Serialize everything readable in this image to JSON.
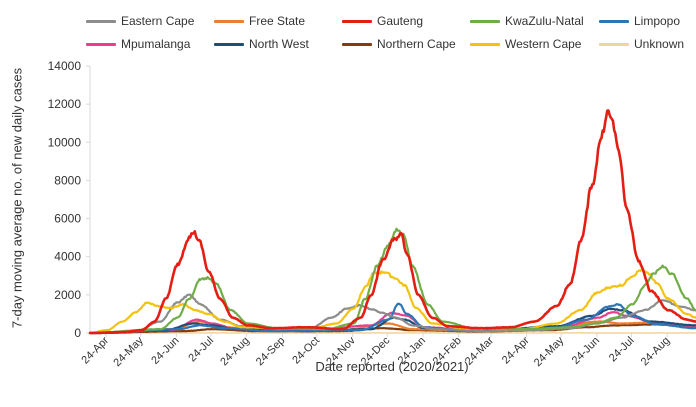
{
  "chart_data": {
    "type": "line",
    "title": "",
    "xlabel": "Date reported (2020/2021)",
    "ylabel": "7-day moving average no. of new daily cases",
    "ylim": [
      0,
      14000
    ],
    "yticks": [
      0,
      2000,
      4000,
      6000,
      8000,
      10000,
      12000,
      14000
    ],
    "ytick_labels": [
      "0",
      "2000",
      "4000",
      "6000",
      "8000",
      "10000",
      "12000",
      "14000"
    ],
    "xlim": [
      "2020-04-10",
      "2021-09-18"
    ],
    "xticks": [
      "2020-04-24",
      "2020-05-24",
      "2020-06-24",
      "2020-07-24",
      "2020-08-24",
      "2020-09-24",
      "2020-10-24",
      "2020-11-24",
      "2020-12-24",
      "2021-01-24",
      "2021-02-24",
      "2021-03-24",
      "2021-04-24",
      "2021-05-24",
      "2021-06-24",
      "2021-07-24",
      "2021-08-24"
    ],
    "xtick_labels": [
      "24-Apr",
      "24-May",
      "24-Jun",
      "24-Jul",
      "24-Aug",
      "24-Sep",
      "24-Oct",
      "24-Nov",
      "24-Dec",
      "24-Jan",
      "24-Feb",
      "24-Mar",
      "24-Apr",
      "24-May",
      "24-Jun",
      "24-Jul",
      "24-Aug"
    ],
    "grid": false,
    "legend_position": "top",
    "series": [
      {
        "name": "Eastern Cape",
        "color": "#8c8c8c",
        "points": [
          [
            "2020-04-10",
            0
          ],
          [
            "2020-05-20",
            100
          ],
          [
            "2020-06-10",
            600
          ],
          [
            "2020-06-25",
            1600
          ],
          [
            "2020-07-05",
            2000
          ],
          [
            "2020-07-15",
            1500
          ],
          [
            "2020-08-01",
            700
          ],
          [
            "2020-08-20",
            350
          ],
          [
            "2020-09-20",
            200
          ],
          [
            "2020-10-20",
            300
          ],
          [
            "2020-11-05",
            800
          ],
          [
            "2020-11-20",
            1300
          ],
          [
            "2020-12-01",
            1450
          ],
          [
            "2020-12-10",
            1250
          ],
          [
            "2020-12-20",
            1050
          ],
          [
            "2021-01-01",
            800
          ],
          [
            "2021-01-15",
            400
          ],
          [
            "2021-02-05",
            200
          ],
          [
            "2021-03-20",
            100
          ],
          [
            "2021-05-01",
            150
          ],
          [
            "2021-06-01",
            250
          ],
          [
            "2021-06-24",
            500
          ],
          [
            "2021-07-15",
            800
          ],
          [
            "2021-08-05",
            1200
          ],
          [
            "2021-08-20",
            1700
          ],
          [
            "2021-09-05",
            1400
          ],
          [
            "2021-09-18",
            1200
          ]
        ]
      },
      {
        "name": "Free State",
        "color": "#ed7d31",
        "points": [
          [
            "2020-04-10",
            0
          ],
          [
            "2020-06-20",
            200
          ],
          [
            "2020-07-15",
            600
          ],
          [
            "2020-08-05",
            300
          ],
          [
            "2020-09-15",
            100
          ],
          [
            "2020-11-15",
            150
          ],
          [
            "2020-12-25",
            500
          ],
          [
            "2021-01-15",
            200
          ],
          [
            "2021-03-15",
            100
          ],
          [
            "2021-05-20",
            300
          ],
          [
            "2021-06-25",
            600
          ],
          [
            "2021-07-15",
            500
          ],
          [
            "2021-08-15",
            550
          ],
          [
            "2021-09-18",
            350
          ]
        ]
      },
      {
        "name": "Gauteng",
        "color": "#e41e13",
        "points": [
          [
            "2020-04-10",
            0
          ],
          [
            "2020-05-10",
            50
          ],
          [
            "2020-05-25",
            150
          ],
          [
            "2020-06-05",
            600
          ],
          [
            "2020-06-15",
            1800
          ],
          [
            "2020-06-25",
            3600
          ],
          [
            "2020-07-05",
            5000
          ],
          [
            "2020-07-09",
            5300
          ],
          [
            "2020-07-14",
            4800
          ],
          [
            "2020-07-22",
            3200
          ],
          [
            "2020-08-01",
            1800
          ],
          [
            "2020-08-12",
            800
          ],
          [
            "2020-08-25",
            400
          ],
          [
            "2020-09-15",
            250
          ],
          [
            "2020-10-15",
            300
          ],
          [
            "2020-11-15",
            200
          ],
          [
            "2020-12-01",
            800
          ],
          [
            "2020-12-10",
            2000
          ],
          [
            "2020-12-20",
            3800
          ],
          [
            "2020-12-30",
            4900
          ],
          [
            "2021-01-05",
            5200
          ],
          [
            "2021-01-10",
            4200
          ],
          [
            "2021-01-20",
            2000
          ],
          [
            "2021-02-01",
            800
          ],
          [
            "2021-02-15",
            350
          ],
          [
            "2021-03-15",
            250
          ],
          [
            "2021-04-10",
            300
          ],
          [
            "2021-05-01",
            600
          ],
          [
            "2021-05-20",
            1400
          ],
          [
            "2021-06-01",
            2600
          ],
          [
            "2021-06-10",
            4800
          ],
          [
            "2021-06-20",
            7800
          ],
          [
            "2021-06-28",
            10300
          ],
          [
            "2021-07-03",
            11600
          ],
          [
            "2021-07-07",
            11200
          ],
          [
            "2021-07-12",
            9800
          ],
          [
            "2021-07-20",
            6500
          ],
          [
            "2021-07-30",
            3800
          ],
          [
            "2021-08-10",
            2200
          ],
          [
            "2021-08-25",
            1200
          ],
          [
            "2021-09-10",
            700
          ],
          [
            "2021-09-18",
            600
          ]
        ]
      },
      {
        "name": "KwaZulu-Natal",
        "color": "#70ad47",
        "points": [
          [
            "2020-04-10",
            0
          ],
          [
            "2020-06-10",
            200
          ],
          [
            "2020-06-25",
            800
          ],
          [
            "2020-07-05",
            1800
          ],
          [
            "2020-07-15",
            2800
          ],
          [
            "2020-07-22",
            2900
          ],
          [
            "2020-07-28",
            2600
          ],
          [
            "2020-08-10",
            1200
          ],
          [
            "2020-08-25",
            500
          ],
          [
            "2020-09-20",
            250
          ],
          [
            "2020-11-01",
            200
          ],
          [
            "2020-11-25",
            500
          ],
          [
            "2020-12-05",
            1800
          ],
          [
            "2020-12-15",
            3500
          ],
          [
            "2020-12-25",
            4600
          ],
          [
            "2021-01-01",
            5400
          ],
          [
            "2021-01-07",
            5100
          ],
          [
            "2021-01-15",
            3500
          ],
          [
            "2021-01-28",
            1500
          ],
          [
            "2021-02-10",
            600
          ],
          [
            "2021-03-10",
            250
          ],
          [
            "2021-04-20",
            200
          ],
          [
            "2021-06-01",
            300
          ],
          [
            "2021-06-24",
            500
          ],
          [
            "2021-07-10",
            800
          ],
          [
            "2021-07-25",
            1500
          ],
          [
            "2021-08-05",
            2500
          ],
          [
            "2021-08-12",
            3100
          ],
          [
            "2021-08-20",
            3500
          ],
          [
            "2021-08-28",
            3100
          ],
          [
            "2021-09-10",
            1800
          ],
          [
            "2021-09-18",
            1200
          ]
        ]
      },
      {
        "name": "Limpopo",
        "color": "#2e75b6",
        "points": [
          [
            "2020-04-10",
            0
          ],
          [
            "2020-06-25",
            200
          ],
          [
            "2020-07-15",
            400
          ],
          [
            "2020-08-05",
            250
          ],
          [
            "2020-09-15",
            100
          ],
          [
            "2020-12-01",
            150
          ],
          [
            "2020-12-25",
            700
          ],
          [
            "2021-01-03",
            1550
          ],
          [
            "2021-01-10",
            1000
          ],
          [
            "2021-01-25",
            300
          ],
          [
            "2021-03-01",
            100
          ],
          [
            "2021-05-15",
            200
          ],
          [
            "2021-06-15",
            700
          ],
          [
            "2021-07-05",
            1400
          ],
          [
            "2021-07-12",
            1500
          ],
          [
            "2021-07-25",
            900
          ],
          [
            "2021-08-15",
            450
          ],
          [
            "2021-09-18",
            250
          ]
        ]
      },
      {
        "name": "Mpumalanga",
        "color": "#e83e8c",
        "points": [
          [
            "2020-04-10",
            0
          ],
          [
            "2020-06-20",
            150
          ],
          [
            "2020-07-12",
            700
          ],
          [
            "2020-07-25",
            500
          ],
          [
            "2020-08-15",
            200
          ],
          [
            "2020-10-15",
            100
          ],
          [
            "2020-12-10",
            400
          ],
          [
            "2020-12-28",
            1050
          ],
          [
            "2021-01-10",
            900
          ],
          [
            "2021-01-25",
            300
          ],
          [
            "2021-03-15",
            100
          ],
          [
            "2021-05-25",
            300
          ],
          [
            "2021-06-25",
            800
          ],
          [
            "2021-07-08",
            1100
          ],
          [
            "2021-07-20",
            900
          ],
          [
            "2021-08-15",
            500
          ],
          [
            "2021-09-18",
            350
          ]
        ]
      },
      {
        "name": "North West",
        "color": "#1f4e79",
        "points": [
          [
            "2020-04-10",
            0
          ],
          [
            "2020-06-15",
            150
          ],
          [
            "2020-07-08",
            500
          ],
          [
            "2020-07-25",
            400
          ],
          [
            "2020-08-15",
            200
          ],
          [
            "2020-10-15",
            100
          ],
          [
            "2020-12-10",
            200
          ],
          [
            "2020-12-30",
            800
          ],
          [
            "2021-01-08",
            700
          ],
          [
            "2021-01-25",
            250
          ],
          [
            "2021-03-15",
            100
          ],
          [
            "2021-05-20",
            350
          ],
          [
            "2021-06-20",
            900
          ],
          [
            "2021-07-05",
            1250
          ],
          [
            "2021-07-15",
            1200
          ],
          [
            "2021-08-10",
            600
          ],
          [
            "2021-09-18",
            400
          ]
        ]
      },
      {
        "name": "Northern Cape",
        "color": "#843c0c",
        "points": [
          [
            "2020-04-10",
            0
          ],
          [
            "2020-07-01",
            100
          ],
          [
            "2020-07-25",
            200
          ],
          [
            "2020-09-01",
            100
          ],
          [
            "2020-11-15",
            100
          ],
          [
            "2020-12-20",
            250
          ],
          [
            "2021-01-15",
            150
          ],
          [
            "2021-03-15",
            80
          ],
          [
            "2021-05-15",
            150
          ],
          [
            "2021-06-15",
            300
          ],
          [
            "2021-07-10",
            400
          ],
          [
            "2021-08-15",
            450
          ],
          [
            "2021-09-05",
            400
          ],
          [
            "2021-09-18",
            350
          ]
        ]
      },
      {
        "name": "Western Cape",
        "color": "#f4c20d",
        "points": [
          [
            "2020-04-10",
            0
          ],
          [
            "2020-04-25",
            150
          ],
          [
            "2020-05-08",
            600
          ],
          [
            "2020-05-20",
            1100
          ],
          [
            "2020-05-30",
            1600
          ],
          [
            "2020-06-08",
            1400
          ],
          [
            "2020-06-18",
            1300
          ],
          [
            "2020-06-30",
            1500
          ],
          [
            "2020-07-10",
            1200
          ],
          [
            "2020-07-22",
            1000
          ],
          [
            "2020-08-05",
            600
          ],
          [
            "2020-08-20",
            300
          ],
          [
            "2020-09-20",
            250
          ],
          [
            "2020-10-20",
            250
          ],
          [
            "2020-11-10",
            500
          ],
          [
            "2020-11-25",
            1300
          ],
          [
            "2020-12-05",
            2400
          ],
          [
            "2020-12-12",
            3100
          ],
          [
            "2020-12-22",
            3200
          ],
          [
            "2020-12-30",
            2900
          ],
          [
            "2021-01-08",
            2500
          ],
          [
            "2021-01-18",
            1300
          ],
          [
            "2021-02-01",
            500
          ],
          [
            "2021-03-01",
            250
          ],
          [
            "2021-04-20",
            200
          ],
          [
            "2021-05-20",
            500
          ],
          [
            "2021-06-10",
            1200
          ],
          [
            "2021-06-24",
            2100
          ],
          [
            "2021-07-05",
            2400
          ],
          [
            "2021-07-15",
            2500
          ],
          [
            "2021-07-25",
            3000
          ],
          [
            "2021-08-01",
            3300
          ],
          [
            "2021-08-08",
            3100
          ],
          [
            "2021-08-15",
            2600
          ],
          [
            "2021-08-25",
            1800
          ],
          [
            "2021-09-10",
            1000
          ],
          [
            "2021-09-18",
            800
          ]
        ]
      },
      {
        "name": "Unknown",
        "color": "#f2d49b",
        "points": [
          [
            "2020-04-10",
            0
          ],
          [
            "2021-09-18",
            0
          ]
        ]
      }
    ]
  }
}
